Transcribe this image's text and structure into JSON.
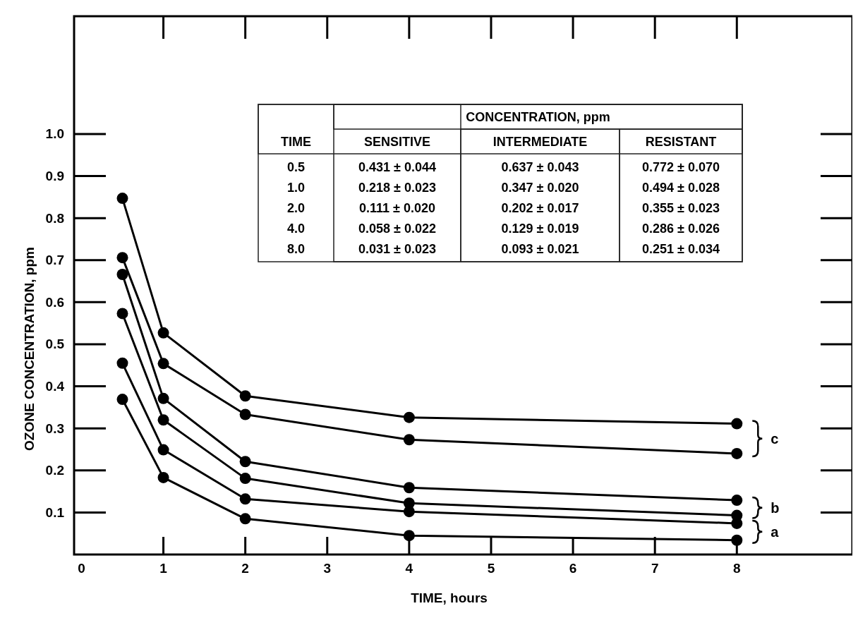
{
  "chart_data": {
    "type": "line",
    "xlabel": "TIME, hours",
    "ylabel": "OZONE CONCENTRATION, ppm",
    "xlim": [
      -0.09,
      9.41
    ],
    "xticks": [
      0,
      1,
      2,
      3,
      4,
      5,
      6,
      7,
      8
    ],
    "ylim": [
      0,
      1.28
    ],
    "yticks": [
      {
        "value": 0.1,
        "label": "0.1"
      },
      {
        "value": 0.2,
        "label": "0.2"
      },
      {
        "value": 0.3,
        "label": "0.3"
      },
      {
        "value": 0.4,
        "label": "0.4"
      },
      {
        "value": 0.5,
        "label": "0.5"
      },
      {
        "value": 0.6,
        "label": "0.6"
      },
      {
        "value": 0.7,
        "label": "0.7"
      },
      {
        "value": 0.8,
        "label": "0.8"
      },
      {
        "value": 0.9,
        "label": "0.9"
      },
      {
        "value": 1.0,
        "label": "1.0"
      }
    ],
    "x": [
      0.5,
      1,
      2,
      4,
      8
    ],
    "series": [
      {
        "color": "#000000",
        "values": [
          0.847,
          0.527,
          0.377,
          0.326,
          0.311
        ]
      },
      {
        "color": "#000000",
        "values": [
          0.706,
          0.454,
          0.333,
          0.273,
          0.24
        ]
      },
      {
        "color": "#000000",
        "values": [
          0.666,
          0.371,
          0.221,
          0.159,
          0.129
        ]
      },
      {
        "color": "#000000",
        "values": [
          0.573,
          0.32,
          0.181,
          0.122,
          0.093
        ]
      },
      {
        "color": "#000000",
        "values": [
          0.455,
          0.249,
          0.132,
          0.102,
          0.074
        ]
      },
      {
        "color": "#000000",
        "values": [
          0.369,
          0.183,
          0.085,
          0.045,
          0.034
        ]
      }
    ],
    "marker": "circle",
    "line_style": "solid",
    "annotations": [
      "CONCENTRATION, ppm",
      "TIME",
      "SENSITIVE",
      "INTERMEDIATE",
      "RESISTANT",
      "0.5",
      "0.431 ± 0.044",
      "0.637 ± 0.043",
      "0.772 ± 0.070",
      "1.0",
      "0.218 ± 0.023",
      "0.347 ± 0.020",
      "0.494 ± 0.028",
      "2.0",
      "0.111 ± 0.020",
      "0.202 ± 0.017",
      "0.355 ± 0.023",
      "4.0",
      "0.058 ± 0.022",
      "0.129 ± 0.019",
      "0.286 ± 0.026",
      "8.0",
      "0.031 ± 0.023",
      "0.093 ± 0.021",
      "0.251 ± 0.034",
      "c",
      "b",
      "a"
    ]
  }
}
